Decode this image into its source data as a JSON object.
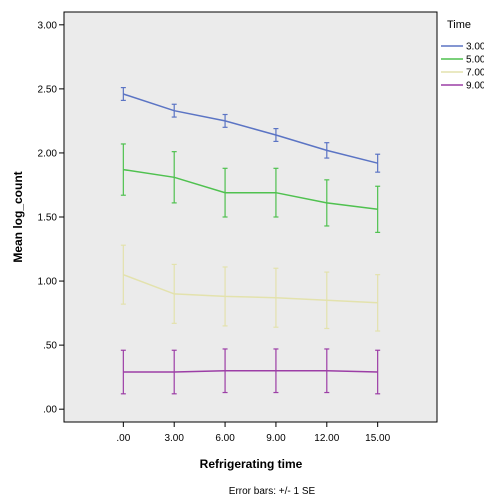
{
  "chart_data": {
    "type": "line",
    "xlabel": "Refrigerating time",
    "ylabel": "Mean log_count",
    "x": [
      0,
      3,
      6,
      9,
      12,
      15
    ],
    "x_tick_labels": [
      ".00",
      "3.00",
      "6.00",
      "9.00",
      "12.00",
      "15.00"
    ],
    "y_ticks": [
      0,
      0.5,
      1.0,
      1.5,
      2.0,
      2.5,
      3.0
    ],
    "y_tick_labels": [
      ".00",
      ".50",
      "1.00",
      "1.50",
      "2.00",
      "2.50",
      "3.00"
    ],
    "xlim": [
      -3.5,
      18.5
    ],
    "ylim": [
      -0.1,
      3.1
    ],
    "grid": false,
    "legend_title": "Time",
    "legend_position": "right",
    "series": [
      {
        "name": "3.00",
        "color": "#5b74c4",
        "values": [
          2.46,
          2.33,
          2.25,
          2.14,
          2.02,
          1.92
        ],
        "se": [
          0.05,
          0.05,
          0.05,
          0.05,
          0.06,
          0.07
        ]
      },
      {
        "name": "5.00",
        "color": "#4fc14f",
        "values": [
          1.87,
          1.81,
          1.69,
          1.69,
          1.61,
          1.56
        ],
        "se": [
          0.2,
          0.2,
          0.19,
          0.19,
          0.18,
          0.18
        ]
      },
      {
        "name": "7.00",
        "color": "#e3e2ad",
        "values": [
          1.05,
          0.9,
          0.88,
          0.87,
          0.85,
          0.83
        ],
        "se": [
          0.23,
          0.23,
          0.23,
          0.23,
          0.22,
          0.22
        ]
      },
      {
        "name": "9.00",
        "color": "#9c3ea6",
        "values": [
          0.29,
          0.29,
          0.3,
          0.3,
          0.3,
          0.29
        ],
        "se": [
          0.17,
          0.17,
          0.17,
          0.17,
          0.17,
          0.17
        ]
      }
    ],
    "note": "Error bars: +/- 1 SE"
  }
}
